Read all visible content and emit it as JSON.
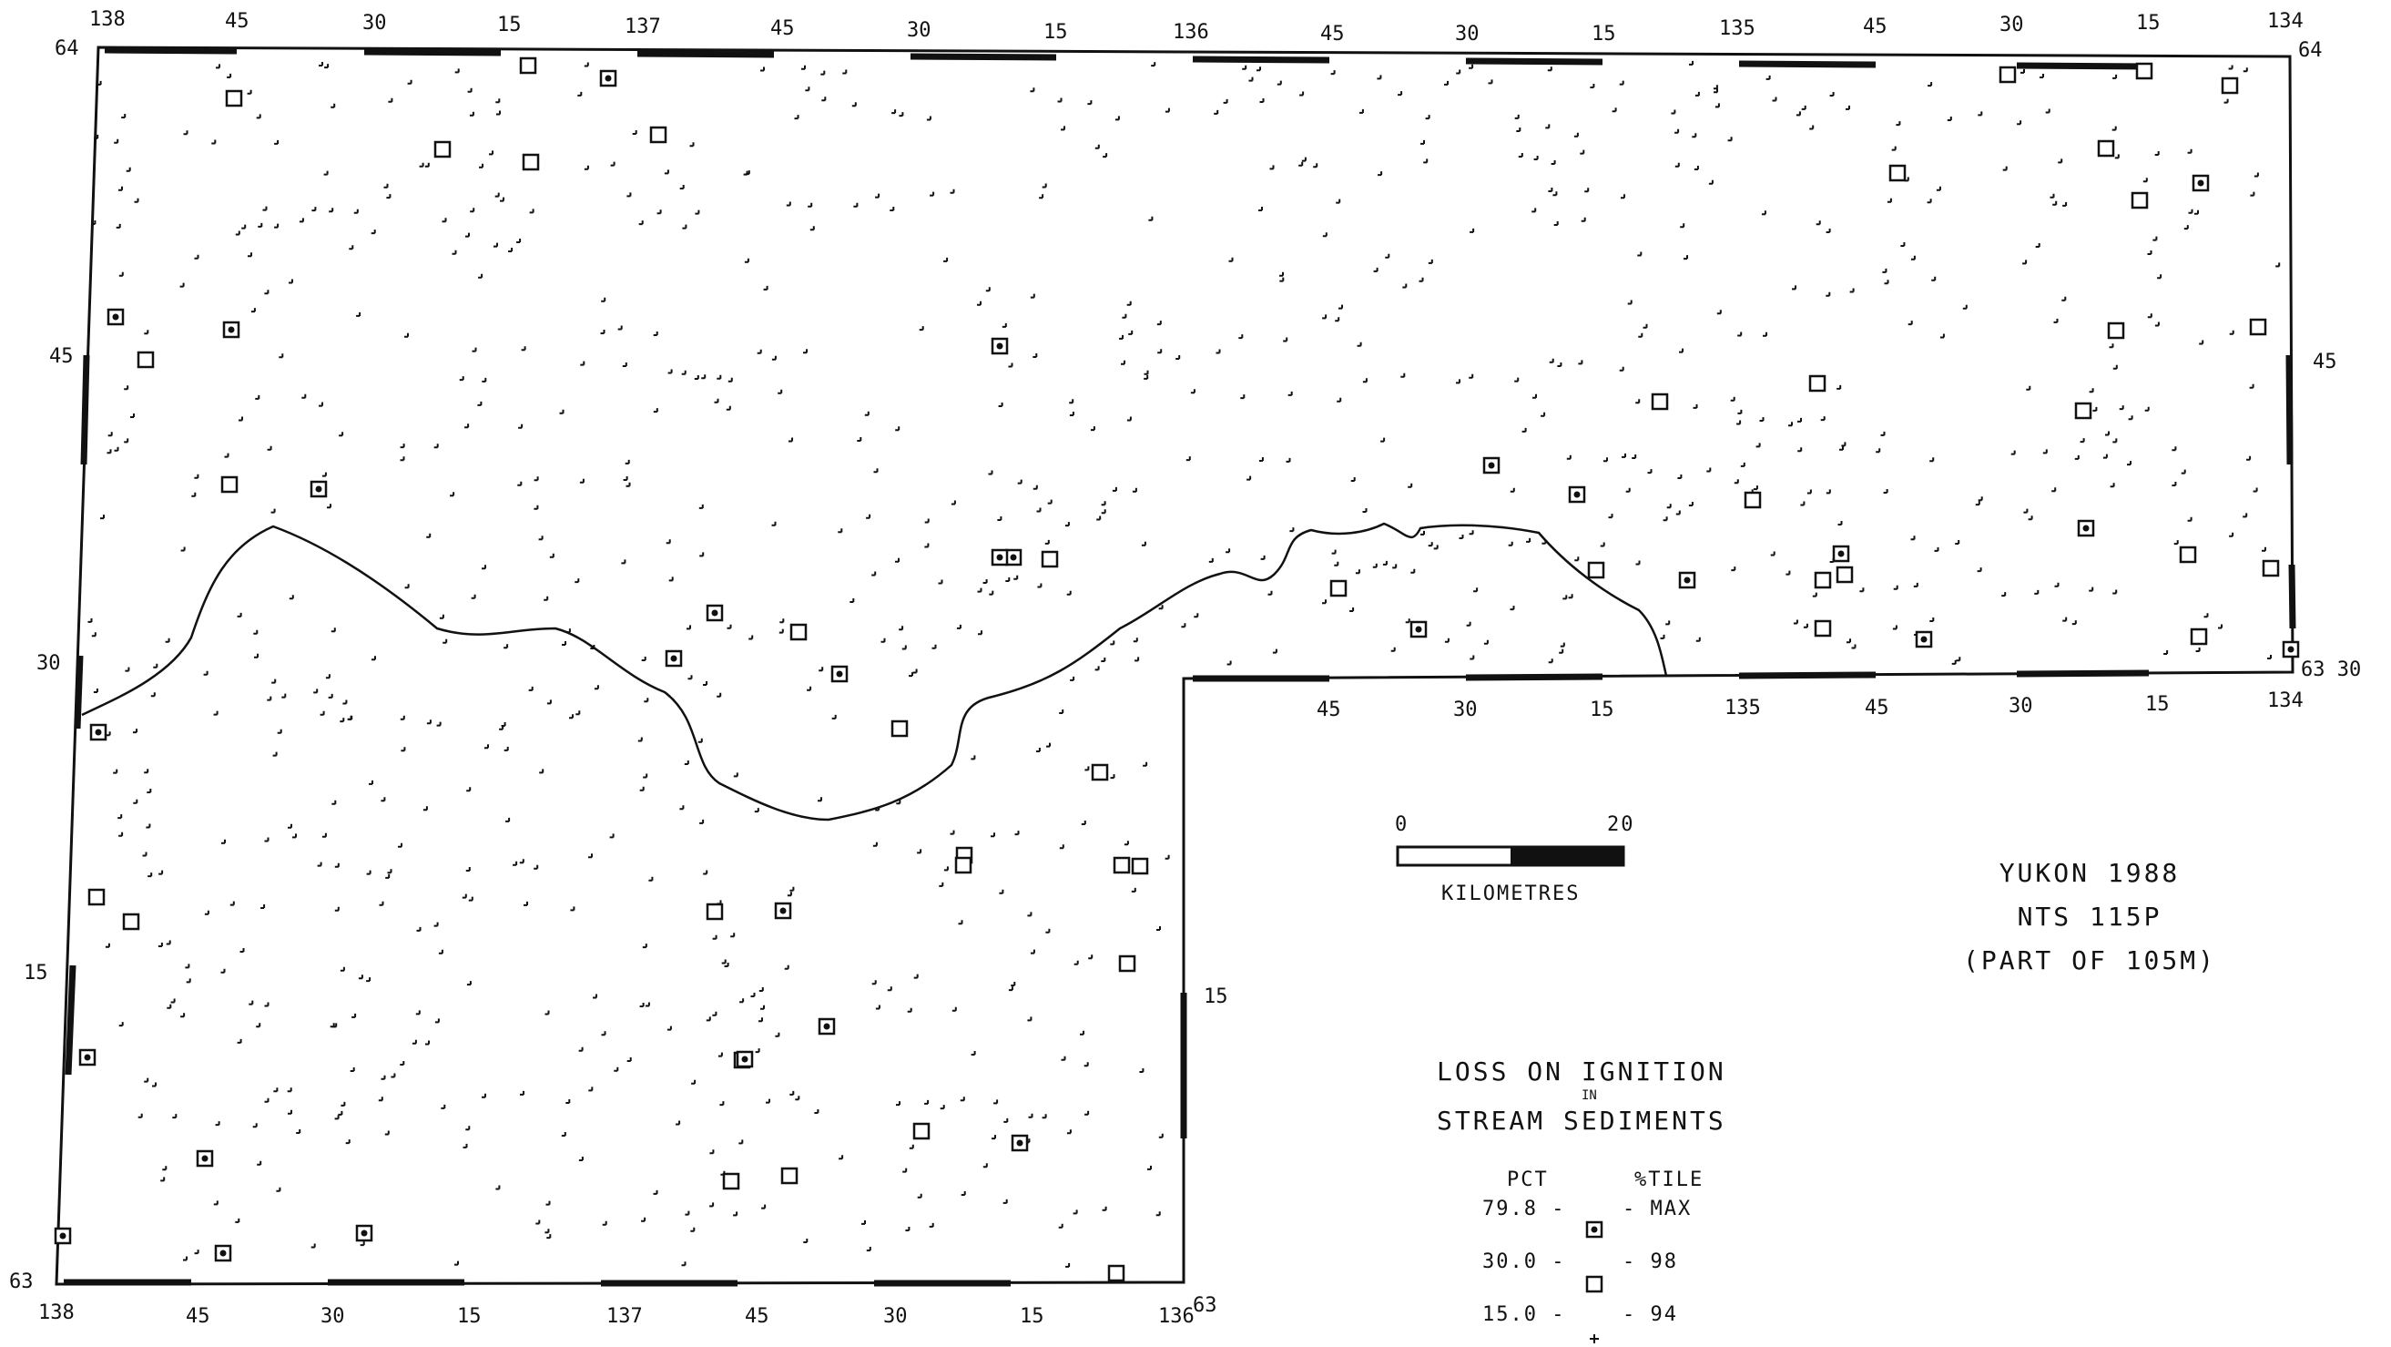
{
  "title": {
    "line1": "YUKON 1988",
    "line2": "NTS 115P",
    "line3": "(PART OF 105M)"
  },
  "scale_bar": {
    "start_label": "0",
    "end_label": "20",
    "unit_label": "KILOMETRES"
  },
  "legend": {
    "title_line1": "LOSS ON IGNITION",
    "title_in": "IN",
    "title_line2": "STREAM SEDIMENTS",
    "col_pct": "PCT",
    "col_pctile": "%TILE",
    "rows": [
      {
        "pct": "79.8 -",
        "pctile": "- MAX",
        "symbol": "dotted-square-icon"
      },
      {
        "pct": "30.0 -",
        "pctile": "- 98",
        "symbol": "square-icon"
      },
      {
        "pct": "15.0 -",
        "pctile": "- 94",
        "symbol": "plus-icon"
      }
    ]
  },
  "top_axis_labels": [
    "138",
    "45",
    "30",
    "15",
    "137",
    "45",
    "30",
    "15",
    "136",
    "45",
    "30",
    "15",
    "135",
    "45",
    "30",
    "15",
    "134"
  ],
  "bottom_axis_labels": [
    "138",
    "45",
    "30",
    "15",
    "137",
    "45",
    "30",
    "15",
    "136"
  ],
  "inner_axis_labels": [
    "45",
    "30",
    "15",
    "135",
    "45",
    "30",
    "15",
    "134"
  ],
  "left_axis_labels": [
    "64",
    "45",
    "30",
    "15",
    "63"
  ],
  "right_axis_labels": [
    "64",
    "45",
    "63 30"
  ],
  "middle_axis_labels": [
    "15",
    "63"
  ],
  "colors": {
    "ink": "#111111",
    "background": "#ffffff"
  }
}
